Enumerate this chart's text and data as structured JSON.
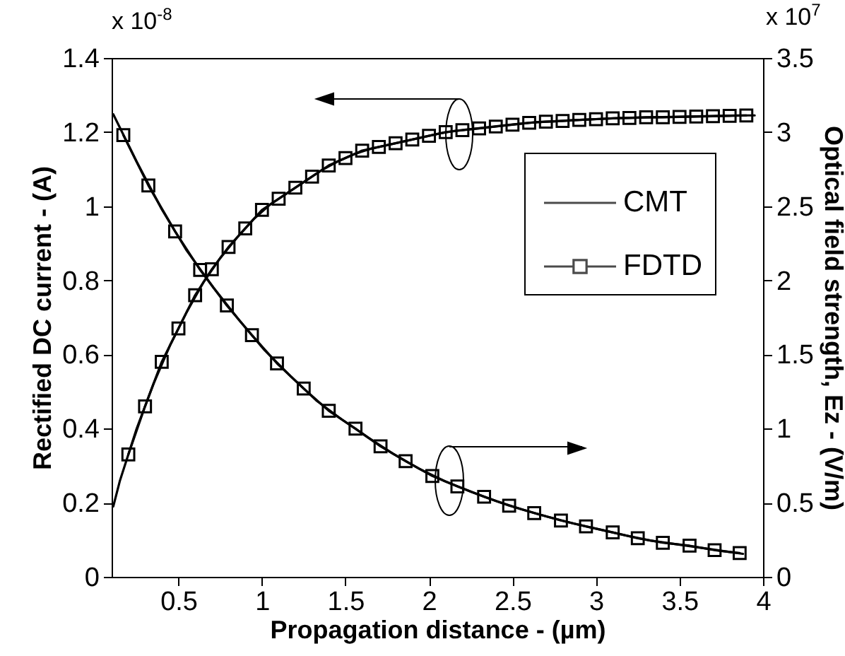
{
  "chart_data": {
    "type": "line",
    "xlabel": "Propagation distance - (µm)",
    "ylabel": "Rectified DC current - (A)",
    "y2label": "Optical field strength, Ez - (V/m)",
    "annotations": [
      "x 10$^{-8}$",
      "x 10$^{7}$"
    ],
    "xlim": [
      0.1,
      4
    ],
    "xticks": [
      0.5,
      1,
      1.5,
      2,
      2.5,
      3,
      3.5,
      4
    ],
    "ylim": [
      0,
      1.4
    ],
    "yticks": [
      0,
      0.2,
      0.4,
      0.6,
      0.8,
      1,
      1.2,
      1.4
    ],
    "y2lim": [
      0,
      3.5
    ],
    "y2ticks": [
      0,
      0.5,
      1,
      1.5,
      2,
      2.5,
      3,
      3.5
    ],
    "legend": "top right",
    "series": [
      {
        "name": "CMT",
        "color": "#000000",
        "axis": "y",
        "marker": "none",
        "x": [
          0.11,
          0.15,
          0.25,
          0.35,
          0.45,
          0.55,
          0.65,
          0.75,
          0.85,
          0.95,
          1.05,
          1.15,
          1.25,
          1.35,
          1.45,
          1.55,
          1.65,
          1.75,
          1.85,
          1.95,
          2.05,
          2.15,
          2.25,
          2.35,
          2.45,
          2.55,
          2.65,
          2.75,
          2.85,
          2.95,
          3.05,
          3.15,
          3.25,
          3.35,
          3.45,
          3.55,
          3.65,
          3.75,
          3.85,
          3.95
        ],
        "values": [
          0.19,
          0.26,
          0.4,
          0.52,
          0.625,
          0.715,
          0.795,
          0.86,
          0.915,
          0.965,
          1.005,
          1.035,
          1.065,
          1.095,
          1.12,
          1.14,
          1.155,
          1.165,
          1.175,
          1.185,
          1.195,
          1.203,
          1.208,
          1.213,
          1.218,
          1.223,
          1.227,
          1.229,
          1.232,
          1.234,
          1.236,
          1.238,
          1.239,
          1.24,
          1.241,
          1.242,
          1.243,
          1.244,
          1.245,
          1.245
        ]
      },
      {
        "name": "FDTD",
        "color": "#000000",
        "axis": "y",
        "marker": "square",
        "x": [
          0.2,
          0.3,
          0.4,
          0.5,
          0.6,
          0.7,
          0.8,
          0.9,
          1.0,
          1.1,
          1.2,
          1.3,
          1.4,
          1.5,
          1.6,
          1.7,
          1.8,
          1.9,
          2.0,
          2.1,
          2.2,
          2.3,
          2.4,
          2.5,
          2.6,
          2.7,
          2.8,
          2.9,
          3.0,
          3.1,
          3.2,
          3.3,
          3.4,
          3.5,
          3.6,
          3.7,
          3.8,
          3.9
        ],
        "values": [
          0.33,
          0.46,
          0.58,
          0.67,
          0.76,
          0.83,
          0.89,
          0.94,
          0.99,
          1.02,
          1.05,
          1.08,
          1.11,
          1.13,
          1.15,
          1.16,
          1.17,
          1.18,
          1.19,
          1.2,
          1.205,
          1.21,
          1.215,
          1.22,
          1.225,
          1.228,
          1.23,
          1.233,
          1.235,
          1.237,
          1.238,
          1.24,
          1.24,
          1.241,
          1.242,
          1.243,
          1.244,
          1.245
        ]
      },
      {
        "color": "#000000",
        "axis": "y2",
        "marker": "none",
        "x": [
          0.11,
          0.25,
          0.4,
          0.55,
          0.71,
          0.865,
          1.015,
          1.17,
          1.325,
          1.48,
          1.635,
          1.785,
          1.94,
          2.095,
          2.25,
          2.405,
          2.555,
          2.71,
          2.865,
          3.02,
          3.175,
          3.325,
          3.48,
          3.635,
          3.785,
          3.88
        ],
        "values": [
          3.12,
          2.8,
          2.48,
          2.2,
          1.95,
          1.73,
          1.53,
          1.355,
          1.19,
          1.06,
          0.94,
          0.83,
          0.73,
          0.645,
          0.575,
          0.51,
          0.455,
          0.405,
          0.36,
          0.32,
          0.28,
          0.245,
          0.22,
          0.195,
          0.17,
          0.155
        ]
      },
      {
        "color": "#000000",
        "axis": "y2",
        "marker": "square",
        "x": [
          0.17,
          0.32,
          0.48,
          0.63,
          0.79,
          0.94,
          1.09,
          1.25,
          1.4,
          1.56,
          1.71,
          1.86,
          2.02,
          2.17,
          2.33,
          2.48,
          2.63,
          2.79,
          2.94,
          3.1,
          3.25,
          3.4,
          3.56,
          3.71,
          3.86
        ],
        "values": [
          2.98,
          2.64,
          2.33,
          2.07,
          1.83,
          1.63,
          1.44,
          1.27,
          1.12,
          1.0,
          0.88,
          0.78,
          0.68,
          0.61,
          0.54,
          0.48,
          0.43,
          0.38,
          0.34,
          0.3,
          0.26,
          0.23,
          0.21,
          0.18,
          0.16
        ]
      }
    ]
  }
}
